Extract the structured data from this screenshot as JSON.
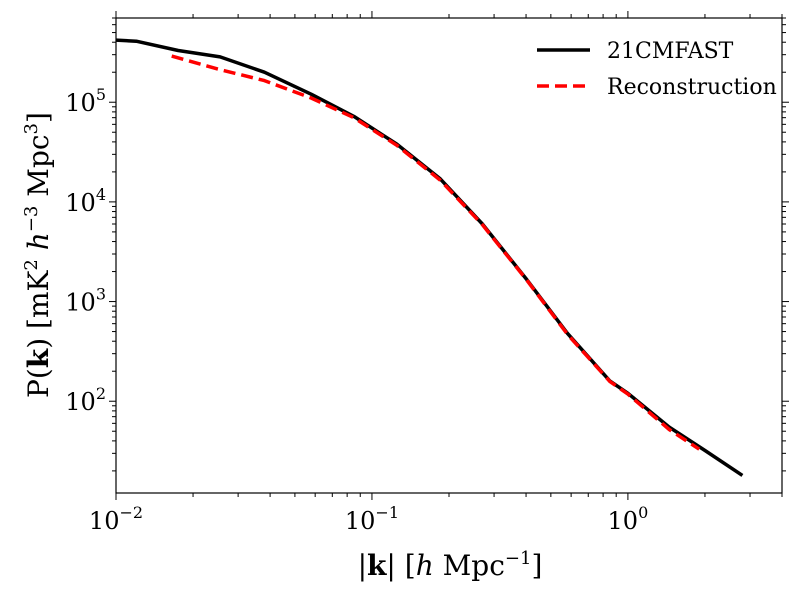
{
  "chart_data": {
    "type": "line",
    "xscale": "log",
    "yscale": "log",
    "xlim": [
      0.01,
      4.0
    ],
    "ylim": [
      12,
      700000
    ],
    "xlabel": {
      "pre": "|",
      "bold": "k",
      "post": "| [",
      "italic": "h",
      "post2": " Mpc",
      "sup": "−1",
      "end": "]"
    },
    "ylabel": {
      "pre": "P(",
      "bold": "k",
      "post": ") [mK",
      "sup1": "2",
      "italic": " h",
      "sup2": "−3",
      "post2": " Mpc",
      "sup3": "3",
      "end": "]"
    },
    "x_ticks": [
      {
        "value": 0.01,
        "base": "10",
        "exp": "−2"
      },
      {
        "value": 0.1,
        "base": "10",
        "exp": "−1"
      },
      {
        "value": 1.0,
        "base": "10",
        "exp": "0"
      }
    ],
    "y_ticks": [
      {
        "value": 100,
        "base": "10",
        "exp": "2"
      },
      {
        "value": 1000,
        "base": "10",
        "exp": "3"
      },
      {
        "value": 10000,
        "base": "10",
        "exp": "4"
      },
      {
        "value": 100000,
        "base": "10",
        "exp": "5"
      }
    ],
    "series": [
      {
        "name": "21CMFAST",
        "color": "#000000",
        "style": "solid",
        "x": [
          0.01,
          0.012,
          0.0175,
          0.0255,
          0.038,
          0.058,
          0.085,
          0.125,
          0.185,
          0.27,
          0.4,
          0.58,
          0.85,
          1.0,
          1.45,
          2.0,
          2.8
        ],
        "y": [
          420000,
          410000,
          330000,
          285000,
          200000,
          120000,
          72000,
          38000,
          17000,
          6000,
          1700,
          480,
          160,
          120,
          55,
          32,
          18
        ]
      },
      {
        "name": "Reconstruction",
        "color": "#ff0000",
        "style": "dashed",
        "x": [
          0.0165,
          0.025,
          0.038,
          0.058,
          0.085,
          0.125,
          0.185,
          0.27,
          0.4,
          0.58,
          0.85,
          1.0,
          1.45,
          1.9
        ],
        "y": [
          290000,
          215000,
          165000,
          110000,
          70000,
          37000,
          16500,
          5900,
          1680,
          470,
          158,
          118,
          52,
          33
        ]
      }
    ],
    "legend": {
      "position": "top-right"
    }
  }
}
